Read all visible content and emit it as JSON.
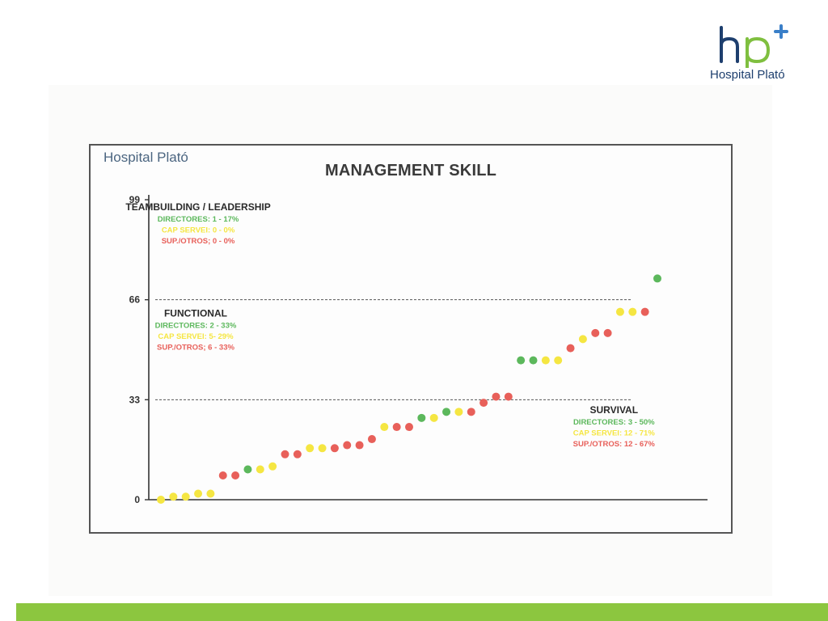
{
  "logo": {
    "monogram": "hp",
    "name": "Hospital Plató",
    "colors": {
      "h": "#1e3f6e",
      "p": "#7fbf3f",
      "plus": "#3a7fc8"
    }
  },
  "frame": {
    "brand": "Hospital Plató"
  },
  "footer": {
    "bar_color": "#8cc63f"
  },
  "chart_data": {
    "type": "scatter",
    "title": "MANAGEMENT SKILL",
    "xlabel": "",
    "ylabel": "",
    "y_ticks": [
      "0",
      "33",
      "66",
      "99"
    ],
    "ylim": [
      0,
      99
    ],
    "grid": false,
    "category_colors": {
      "DIRECTORES": "#5cb85c",
      "CAP SERVEI": "#f5e642",
      "SUP./OTROS": "#e8605a"
    },
    "reference_lines": [
      33,
      66
    ],
    "points": [
      {
        "x": 1,
        "y": 0,
        "group": "CAP SERVEI"
      },
      {
        "x": 2,
        "y": 1,
        "group": "CAP SERVEI"
      },
      {
        "x": 3,
        "y": 1,
        "group": "CAP SERVEI"
      },
      {
        "x": 4,
        "y": 2,
        "group": "CAP SERVEI"
      },
      {
        "x": 5,
        "y": 2,
        "group": "CAP SERVEI"
      },
      {
        "x": 6,
        "y": 8,
        "group": "SUP./OTROS"
      },
      {
        "x": 7,
        "y": 8,
        "group": "SUP./OTROS"
      },
      {
        "x": 8,
        "y": 10,
        "group": "DIRECTORES"
      },
      {
        "x": 9,
        "y": 10,
        "group": "CAP SERVEI"
      },
      {
        "x": 10,
        "y": 11,
        "group": "CAP SERVEI"
      },
      {
        "x": 11,
        "y": 15,
        "group": "SUP./OTROS"
      },
      {
        "x": 12,
        "y": 15,
        "group": "SUP./OTROS"
      },
      {
        "x": 13,
        "y": 17,
        "group": "CAP SERVEI"
      },
      {
        "x": 14,
        "y": 17,
        "group": "CAP SERVEI"
      },
      {
        "x": 15,
        "y": 17,
        "group": "SUP./OTROS"
      },
      {
        "x": 16,
        "y": 18,
        "group": "SUP./OTROS"
      },
      {
        "x": 17,
        "y": 18,
        "group": "SUP./OTROS"
      },
      {
        "x": 18,
        "y": 20,
        "group": "SUP./OTROS"
      },
      {
        "x": 19,
        "y": 24,
        "group": "CAP SERVEI"
      },
      {
        "x": 20,
        "y": 24,
        "group": "SUP./OTROS"
      },
      {
        "x": 21,
        "y": 24,
        "group": "SUP./OTROS"
      },
      {
        "x": 22,
        "y": 27,
        "group": "DIRECTORES"
      },
      {
        "x": 23,
        "y": 27,
        "group": "CAP SERVEI"
      },
      {
        "x": 24,
        "y": 29,
        "group": "DIRECTORES"
      },
      {
        "x": 25,
        "y": 29,
        "group": "CAP SERVEI"
      },
      {
        "x": 26,
        "y": 29,
        "group": "SUP./OTROS"
      },
      {
        "x": 27,
        "y": 32,
        "group": "SUP./OTROS"
      },
      {
        "x": 28,
        "y": 34,
        "group": "SUP./OTROS"
      },
      {
        "x": 29,
        "y": 34,
        "group": "SUP./OTROS"
      },
      {
        "x": 30,
        "y": 46,
        "group": "DIRECTORES"
      },
      {
        "x": 31,
        "y": 46,
        "group": "DIRECTORES"
      },
      {
        "x": 32,
        "y": 46,
        "group": "CAP SERVEI"
      },
      {
        "x": 33,
        "y": 46,
        "group": "CAP SERVEI"
      },
      {
        "x": 34,
        "y": 50,
        "group": "SUP./OTROS"
      },
      {
        "x": 35,
        "y": 53,
        "group": "CAP SERVEI"
      },
      {
        "x": 36,
        "y": 55,
        "group": "SUP./OTROS"
      },
      {
        "x": 37,
        "y": 55,
        "group": "SUP./OTROS"
      },
      {
        "x": 38,
        "y": 62,
        "group": "CAP SERVEI"
      },
      {
        "x": 39,
        "y": 62,
        "group": "CAP SERVEI"
      },
      {
        "x": 40,
        "y": 62,
        "group": "SUP./OTROS"
      },
      {
        "x": 41,
        "y": 73,
        "group": "DIRECTORES"
      }
    ],
    "annotations": [
      {
        "id": "teambuilding",
        "align": "center",
        "x": 4,
        "y": 95.5,
        "lines": [
          {
            "text": "TEAMBUILDING / LEADERSHIP",
            "group": "heading"
          },
          {
            "text": "DIRECTORES: 1 - 17%",
            "group": "DIRECTORES"
          },
          {
            "text": "CAP SERVEI: 0 - 0%",
            "group": "CAP SERVEI"
          },
          {
            "text": "SUP./OTROS; 0 - 0%",
            "group": "SUP./OTROS"
          }
        ]
      },
      {
        "id": "functional",
        "align": "center",
        "x": 3.8,
        "y": 60.5,
        "lines": [
          {
            "text": "FUNCTIONAL",
            "group": "heading"
          },
          {
            "text": "DIRECTORES: 2 - 33%",
            "group": "DIRECTORES"
          },
          {
            "text": "CAP SERVEI: 5- 29%",
            "group": "CAP SERVEI"
          },
          {
            "text": "SUP./OTROS; 6 - 33%",
            "group": "SUP./OTROS"
          }
        ]
      },
      {
        "id": "survival",
        "align": "center",
        "x": 37.5,
        "y": 28.5,
        "lines": [
          {
            "text": "SURVIVAL",
            "group": "heading"
          },
          {
            "text": "DIRECTORES: 3 - 50%",
            "group": "DIRECTORES"
          },
          {
            "text": "CAP SERVEI: 12 - 71%",
            "group": "CAP SERVEI"
          },
          {
            "text": "SUP./OTROS: 12 - 67%",
            "group": "SUP./OTROS"
          }
        ]
      }
    ]
  }
}
